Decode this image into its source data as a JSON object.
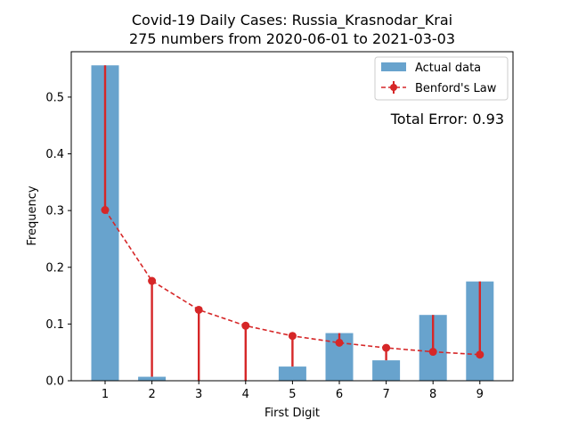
{
  "chart_data": {
    "type": "bar",
    "title": "Covid-19 Daily Cases: Russia_Krasnodar_Krai",
    "subtitle": "275 numbers from 2020-06-01 to 2021-03-03",
    "xlabel": "First Digit",
    "ylabel": "Frequency",
    "categories": [
      "1",
      "2",
      "3",
      "4",
      "5",
      "6",
      "7",
      "8",
      "9"
    ],
    "ylim": [
      0,
      0.58
    ],
    "yticks": [
      "0.0",
      "0.1",
      "0.2",
      "0.3",
      "0.4",
      "0.5"
    ],
    "series": [
      {
        "name": "Actual data",
        "type": "bar",
        "color": "#5b9bc9",
        "values": [
          0.556,
          0.007,
          0.0,
          0.0,
          0.025,
          0.084,
          0.036,
          0.116,
          0.175
        ]
      },
      {
        "name": "Benford's Law",
        "type": "line",
        "color": "#d62728",
        "values": [
          0.301,
          0.176,
          0.125,
          0.097,
          0.079,
          0.067,
          0.058,
          0.051,
          0.046
        ]
      }
    ],
    "annotation": {
      "text": "Total Error: 0.93",
      "color": "#d62728"
    },
    "legend_position": "top-right",
    "grid": false
  }
}
